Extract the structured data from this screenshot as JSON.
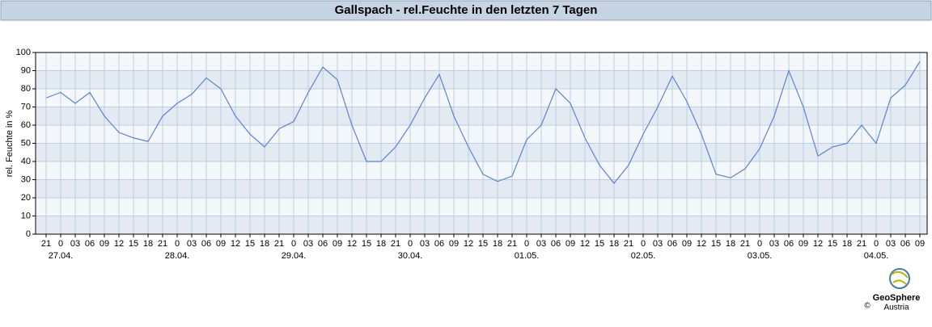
{
  "chart_data": {
    "type": "line",
    "title": "Gallspach - rel.Feuchte in den letzten 7 Tagen",
    "y_label": "rel. Feuchte in %",
    "categories": [
      "21",
      "0",
      "03",
      "06",
      "09",
      "12",
      "15",
      "18",
      "21",
      "0",
      "03",
      "06",
      "09",
      "12",
      "15",
      "18",
      "21",
      "0",
      "03",
      "06",
      "09",
      "12",
      "15",
      "18",
      "21",
      "0",
      "03",
      "06",
      "09",
      "12",
      "15",
      "18",
      "21",
      "0",
      "03",
      "06",
      "09",
      "12",
      "15",
      "18",
      "21",
      "0",
      "03",
      "06",
      "09",
      "12",
      "15",
      "18",
      "21",
      "0",
      "03",
      "06",
      "09",
      "12",
      "15",
      "18",
      "21",
      "0",
      "03",
      "06",
      "09"
    ],
    "dates": [
      "27.04.",
      "28.04.",
      "29.04.",
      "30.04.",
      "01.05.",
      "02.05.",
      "03.05.",
      "04.05."
    ],
    "series": [
      {
        "name": "rel. Feuchte",
        "color": "#5b82d6",
        "values": [
          75,
          78,
          72,
          78,
          65,
          56,
          53,
          51,
          65,
          72,
          77,
          86,
          80,
          65,
          55,
          48,
          58,
          62,
          78,
          92,
          85,
          60,
          40,
          40,
          48,
          60,
          75,
          88,
          65,
          48,
          33,
          29,
          32,
          52,
          60,
          80,
          72,
          53,
          38,
          28,
          38,
          55,
          70,
          87,
          73,
          55,
          33,
          31,
          36,
          47,
          65,
          90,
          70,
          43,
          48,
          50,
          60,
          50,
          75,
          82,
          95
        ]
      }
    ],
    "ylim": [
      0,
      100
    ],
    "yticks": [
      0,
      10,
      20,
      30,
      40,
      50,
      60,
      70,
      80,
      90,
      100
    ],
    "grid": true,
    "logo": {
      "name": "GeoSphere",
      "sub": "Austria",
      "copyright": "©"
    }
  }
}
